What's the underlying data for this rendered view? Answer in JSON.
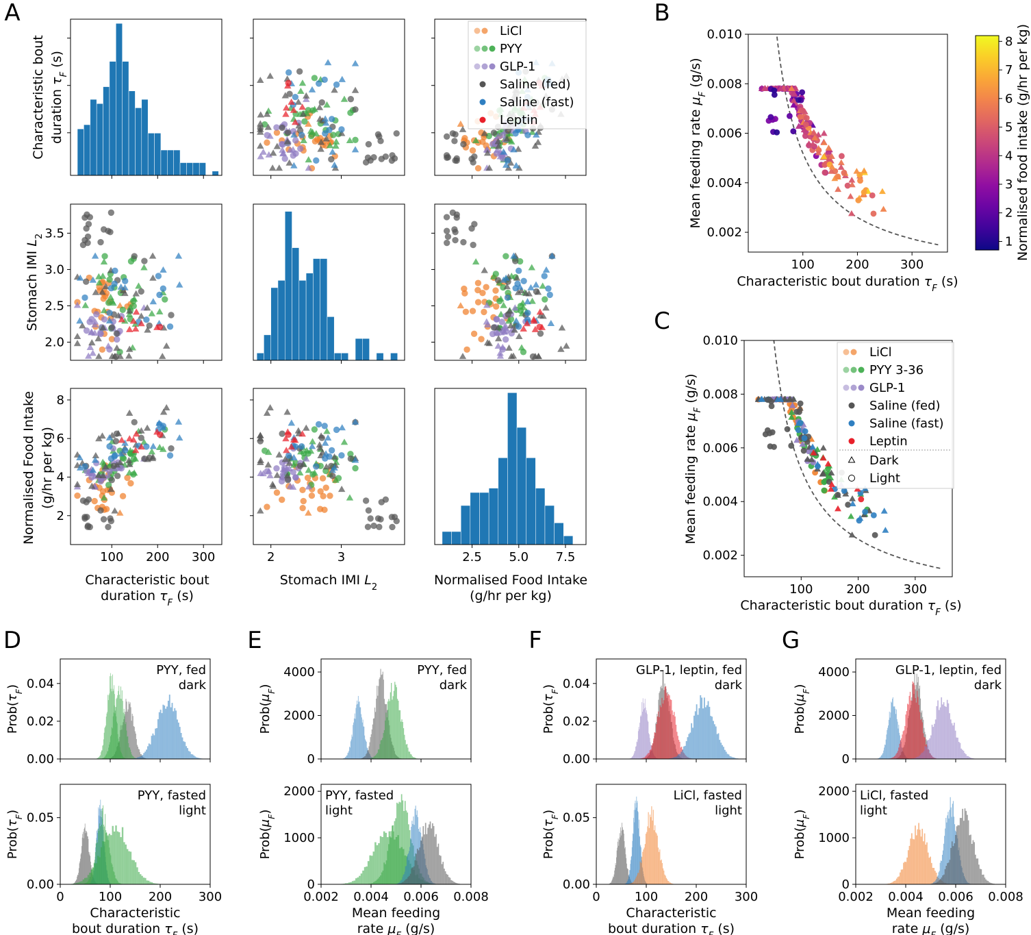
{
  "panel_letters": [
    "A",
    "B",
    "C",
    "D",
    "E",
    "F",
    "G"
  ],
  "colors": {
    "licl": "#f07f2b",
    "pyy": "#39a845",
    "glp1": "#8f7cc2",
    "saline_fed": "#555555",
    "saline_fast": "#2f7fc1",
    "leptin": "#e8202a",
    "hist": "#1f77b4",
    "fit_curve": "#555555"
  },
  "chart_data": [
    {
      "id": "A-hist-tau",
      "type": "histogram",
      "title": "",
      "xlabel": "",
      "ylabel": "Characteristic bout duration τF (s)",
      "xlim": [
        10,
        340
      ],
      "ylim": [
        0,
        37
      ],
      "bin_edges": [
        25,
        39,
        53,
        67,
        81,
        95,
        109,
        123,
        137,
        151,
        165,
        179,
        193,
        207,
        221,
        235,
        249,
        263,
        277,
        291,
        305,
        319,
        333
      ],
      "counts": [
        11,
        12,
        18,
        17,
        21,
        27,
        36,
        27,
        20,
        16,
        18,
        10,
        10,
        6,
        6,
        6,
        3,
        3,
        3,
        3,
        0,
        1
      ]
    },
    {
      "id": "A-scatter-L2-vs-tau",
      "type": "scatter",
      "title": "",
      "xlabel": "",
      "ylabel": "",
      "xlim": [
        1.75,
        3.9
      ],
      "ylim": [
        10,
        340
      ]
    },
    {
      "id": "A-scatter-intake-vs-tau",
      "type": "scatter",
      "title": "",
      "xlabel": "",
      "ylabel": "",
      "xlim": [
        0.5,
        8.6
      ],
      "ylim": [
        10,
        340
      ],
      "legend": [
        "LiCl",
        "PYY",
        "GLP-1",
        "Saline (fed)",
        "Saline (fast)",
        "Leptin"
      ],
      "legend_position": "top-right"
    },
    {
      "id": "A-scatter-tau-vs-L2",
      "type": "scatter",
      "title": "",
      "xlabel": "",
      "ylabel": "Stomach IMI L2",
      "xlim": [
        10,
        340
      ],
      "ylim": [
        1.8,
        3.9
      ],
      "yticks": [
        "2.0",
        "2.5",
        "3.0",
        "3.5"
      ]
    },
    {
      "id": "A-hist-L2",
      "type": "histogram",
      "title": "",
      "xlabel": "",
      "ylabel": "",
      "xlim": [
        1.75,
        3.9
      ],
      "ylim": [
        0,
        43
      ],
      "bin_edges": [
        1.8,
        1.9,
        2.0,
        2.1,
        2.2,
        2.3,
        2.4,
        2.5,
        2.6,
        2.7,
        2.8,
        2.9,
        3.0,
        3.1,
        3.2,
        3.3,
        3.4,
        3.5,
        3.6,
        3.7,
        3.8
      ],
      "counts": [
        2,
        7,
        20,
        22,
        41,
        31,
        22,
        24,
        28,
        28,
        12,
        2,
        2,
        0,
        6,
        6,
        0,
        2,
        0,
        2
      ]
    },
    {
      "id": "A-scatter-intake-vs-L2",
      "type": "scatter",
      "title": "",
      "xlabel": "",
      "ylabel": "",
      "xlim": [
        0.5,
        8.6
      ],
      "ylim": [
        1.8,
        3.9
      ]
    },
    {
      "id": "A-scatter-tau-vs-intake",
      "type": "scatter",
      "title": "",
      "xlabel": "Characteristic bout duration τF (s)",
      "ylabel": "Normalised Food Intake (g/hr per kg)",
      "xlim": [
        10,
        340
      ],
      "ylim": [
        0.2,
        8.6
      ],
      "xticks": [
        "100",
        "200",
        "300"
      ],
      "yticks": [
        "2",
        "4",
        "6",
        "8"
      ]
    },
    {
      "id": "A-scatter-L2-vs-intake",
      "type": "scatter",
      "title": "",
      "xlabel": "Stomach IMI L2",
      "ylabel": "",
      "xlim": [
        1.75,
        3.9
      ],
      "ylim": [
        0.2,
        8.6
      ],
      "xticks": [
        "2",
        "3"
      ]
    },
    {
      "id": "A-hist-intake",
      "type": "histogram",
      "title": "",
      "xlabel": "Normalised Food Intake (g/hr per kg)",
      "ylabel": "",
      "xlim": [
        0.5,
        8.6
      ],
      "ylim": [
        0,
        36
      ],
      "xticks": [
        "2.5",
        "5.0",
        "7.5"
      ],
      "bin_edges": [
        0.9,
        1.4,
        1.9,
        2.4,
        2.9,
        3.4,
        3.9,
        4.4,
        4.9,
        5.4,
        5.9,
        6.4,
        6.9,
        7.4,
        7.9
      ],
      "counts": [
        3,
        3,
        9,
        12,
        12,
        13,
        20,
        35,
        27,
        20,
        13,
        9,
        5,
        2
      ]
    },
    {
      "id": "B",
      "type": "scatter",
      "title": "",
      "xlabel": "Characteristic bout duration τF (s)",
      "ylabel": "Mean feeding rate μF (g/s)",
      "xlim": [
        0,
        365
      ],
      "ylim": [
        0.0012,
        0.01
      ],
      "xticks": [
        "100",
        "200",
        "300"
      ],
      "yticks": [
        "0.002",
        "0.004",
        "0.006",
        "0.008",
        "0.010"
      ],
      "colorbar": {
        "label": "Normalised food intake (g/hr per kg)",
        "range": [
          0.7,
          8.2
        ],
        "ticks": [
          "1",
          "2",
          "3",
          "4",
          "5",
          "6",
          "7",
          "8"
        ]
      },
      "fit_curve": "μF·τF = constant (dashed)"
    },
    {
      "id": "C",
      "type": "scatter",
      "title": "",
      "xlabel": "Characteristic bout duration τF (s)",
      "ylabel": "Mean feeding rate μF (g/s)",
      "xlim": [
        0,
        365
      ],
      "ylim": [
        0.0012,
        0.01
      ],
      "xticks": [
        "100",
        "200",
        "300"
      ],
      "yticks": [
        "0.002",
        "0.004",
        "0.006",
        "0.008",
        "0.010"
      ],
      "legend": [
        "LiCl",
        "PYY 3-36",
        "GLP-1",
        "Saline (fed)",
        "Saline (fast)",
        "Leptin",
        "Dark",
        "Light"
      ],
      "legend_position": "top-right"
    },
    {
      "id": "D-top",
      "type": "histogram",
      "title": "",
      "annotation": [
        "PYY, fed",
        "dark"
      ],
      "xlabel": "",
      "ylabel": "Prob(τF)",
      "xlim": [
        0,
        300
      ],
      "ylim": [
        0,
        0.053
      ],
      "yticks": [
        "0.00",
        "0.02",
        "0.04"
      ],
      "series": [
        {
          "name": "Saline (fed)",
          "mean": 135,
          "sd": 12
        },
        {
          "name": "PYY",
          "mean": 102,
          "sd": 9
        },
        {
          "name": "PYY",
          "mean": 118,
          "sd": 11
        },
        {
          "name": "Saline (fast)",
          "mean": 215,
          "sd": 22
        }
      ]
    },
    {
      "id": "D-bottom",
      "type": "histogram",
      "title": "",
      "annotation": [
        "PYY, fasted",
        "light"
      ],
      "xlabel": "Characteristic bout duration τF (s)",
      "ylabel": "Prob(τF)",
      "xlim": [
        0,
        300
      ],
      "ylim": [
        0,
        0.075
      ],
      "yticks": [
        "0.00",
        "0.05"
      ],
      "xticks": [
        "0",
        "100",
        "200",
        "300"
      ],
      "series": [
        {
          "name": "Saline (fed)",
          "mean": 50,
          "sd": 8
        },
        {
          "name": "Saline (fast)",
          "mean": 80,
          "sd": 7
        },
        {
          "name": "PYY",
          "mean": 85,
          "sd": 12
        },
        {
          "name": "PYY",
          "mean": 110,
          "sd": 28
        }
      ]
    },
    {
      "id": "E-top",
      "type": "histogram",
      "title": "",
      "annotation": [
        "PYY, fed",
        "dark"
      ],
      "xlabel": "",
      "ylabel": "Prob(μF)",
      "xlim": [
        0.002,
        0.008
      ],
      "ylim": [
        0,
        4600
      ],
      "yticks": [
        "0",
        "2000",
        "4000"
      ],
      "series": [
        {
          "name": "Saline (fast)",
          "mean": 0.0035,
          "sd": 0.0002
        },
        {
          "name": "Saline (fed)",
          "mean": 0.0044,
          "sd": 0.00025
        },
        {
          "name": "PYY",
          "mean": 0.0049,
          "sd": 0.0003
        }
      ]
    },
    {
      "id": "E-bottom",
      "type": "histogram",
      "title": "",
      "annotation": [
        "PYY, fasted",
        "light"
      ],
      "xlabel": "Mean feeding rate μF (g/s)",
      "ylabel": "Prob(μF)",
      "xlim": [
        0.002,
        0.008
      ],
      "ylim": [
        0,
        2150
      ],
      "yticks": [
        "0",
        "1000",
        "2000"
      ],
      "xticks": [
        "0.002",
        "0.004",
        "0.006",
        "0.008"
      ],
      "series": [
        {
          "name": "PYY",
          "mean": 0.0047,
          "sd": 0.0006
        },
        {
          "name": "PYY",
          "mean": 0.0052,
          "sd": 0.0004
        },
        {
          "name": "Saline (fast)",
          "mean": 0.0058,
          "sd": 0.00025
        },
        {
          "name": "Saline (fed)",
          "mean": 0.0063,
          "sd": 0.0004
        }
      ]
    },
    {
      "id": "F-top",
      "type": "histogram",
      "title": "",
      "annotation": [
        "GLP-1, leptin, fed",
        "dark"
      ],
      "xlabel": "",
      "ylabel": "Prob(τF)",
      "xlim": [
        0,
        300
      ],
      "ylim": [
        0,
        0.053
      ],
      "yticks": [
        "0.00",
        "0.02",
        "0.04"
      ],
      "series": [
        {
          "name": "GLP-1",
          "mean": 95,
          "sd": 9
        },
        {
          "name": "Saline (fed)",
          "mean": 135,
          "sd": 12
        },
        {
          "name": "Leptin",
          "mean": 140,
          "sd": 16
        },
        {
          "name": "Saline (fast)",
          "mean": 215,
          "sd": 22
        }
      ]
    },
    {
      "id": "F-bottom",
      "type": "histogram",
      "title": "",
      "annotation": [
        "LiCl, fasted",
        "light"
      ],
      "xlabel": "Characteristic bout duration τF (s)",
      "ylabel": "Prob(τF)",
      "xlim": [
        0,
        300
      ],
      "ylim": [
        0,
        0.075
      ],
      "yticks": [
        "0.00",
        "0.05"
      ],
      "xticks": [
        "0",
        "100",
        "200",
        "300"
      ],
      "series": [
        {
          "name": "Saline (fed)",
          "mean": 50,
          "sd": 8
        },
        {
          "name": "Saline (fast)",
          "mean": 80,
          "sd": 7
        },
        {
          "name": "LiCl",
          "mean": 110,
          "sd": 14
        }
      ]
    },
    {
      "id": "G-top",
      "type": "histogram",
      "title": "",
      "annotation": [
        "GLP-1, leptin, fed",
        "dark"
      ],
      "xlabel": "",
      "ylabel": "Prob(μF)",
      "xlim": [
        0.002,
        0.008
      ],
      "ylim": [
        0,
        4600
      ],
      "yticks": [
        "0",
        "2000",
        "4000"
      ],
      "series": [
        {
          "name": "Saline (fast)",
          "mean": 0.0035,
          "sd": 0.0002
        },
        {
          "name": "Saline (fed)",
          "mean": 0.0044,
          "sd": 0.00025
        },
        {
          "name": "Leptin",
          "mean": 0.0043,
          "sd": 0.0003
        },
        {
          "name": "GLP-1",
          "mean": 0.0055,
          "sd": 0.0004
        }
      ]
    },
    {
      "id": "G-bottom",
      "type": "histogram",
      "title": "",
      "annotation": [
        "LiCl, fasted",
        "light"
      ],
      "xlabel": "Mean feeding rate μF (g/s)",
      "ylabel": "Prob(μF)",
      "xlim": [
        0.002,
        0.008
      ],
      "ylim": [
        0,
        2150
      ],
      "yticks": [
        "0",
        "1000",
        "2000"
      ],
      "xticks": [
        "0.002",
        "0.004",
        "0.006",
        "0.008"
      ],
      "series": [
        {
          "name": "LiCl",
          "mean": 0.0045,
          "sd": 0.0004
        },
        {
          "name": "Saline (fast)",
          "mean": 0.0058,
          "sd": 0.00025
        },
        {
          "name": "Saline (fed)",
          "mean": 0.0063,
          "sd": 0.0004
        }
      ]
    }
  ]
}
